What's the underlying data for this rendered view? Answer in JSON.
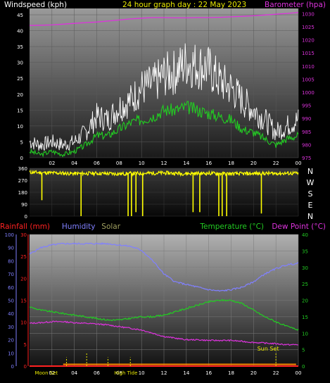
{
  "chart_data": [
    {
      "type": "line",
      "title": "24 hour graph day : 22 May 2023",
      "left_axis_label": "Windspeed (kph)",
      "right_axis_label": "Barometer (hpa)",
      "x_ticks": [
        "02",
        "04",
        "06",
        "08",
        "10",
        "12",
        "14",
        "16",
        "18",
        "20",
        "22",
        "00"
      ],
      "left_ticks": [
        "0",
        "5",
        "10",
        "15",
        "20",
        "25",
        "30",
        "35",
        "40",
        "45"
      ],
      "right_ticks": [
        "975",
        "980",
        "985",
        "990",
        "995",
        "1000",
        "1005",
        "1010",
        "1015",
        "1020",
        "1025",
        "1030"
      ],
      "ylim_left": [
        0,
        47
      ],
      "ylim_right": [
        975,
        1032
      ],
      "x": [
        0,
        1,
        2,
        3,
        4,
        5,
        6,
        7,
        8,
        9,
        10,
        11,
        12,
        13,
        14,
        15,
        16,
        17,
        18,
        19,
        20,
        21,
        22,
        23,
        24
      ],
      "series": [
        {
          "key": "gust",
          "color": "#ffffff",
          "values": [
            5,
            4,
            5,
            4,
            5,
            8,
            13,
            12,
            16,
            18,
            22,
            23,
            26,
            27,
            30,
            29,
            28,
            24,
            22,
            18,
            15,
            12,
            8,
            10,
            12
          ]
        },
        {
          "key": "wind",
          "color": "#22cc22",
          "values": [
            2,
            1,
            2,
            1,
            2,
            4,
            7,
            7,
            9,
            11,
            12,
            13,
            15,
            15,
            16,
            15,
            14,
            13,
            12,
            9,
            8,
            6,
            4,
            6,
            7
          ]
        },
        {
          "key": "barometer",
          "color": "#dd33dd",
          "values": [
            1025.5,
            1025.6,
            1025.7,
            1026.0,
            1026.3,
            1026.6,
            1026.8,
            1027.2,
            1027.6,
            1028.0,
            1028.3,
            1028.5,
            1028.5,
            1028.4,
            1028.4,
            1028.5,
            1028.5,
            1028.6,
            1028.8,
            1029.0,
            1029.2,
            1029.5,
            1029.8,
            1030.1,
            1030.5
          ]
        }
      ]
    },
    {
      "type": "line",
      "right_labels": [
        "N",
        "W",
        "S",
        "E",
        "N"
      ],
      "left_ticks": [
        "360",
        "270",
        "180",
        "90",
        "0"
      ],
      "ylim": [
        0,
        360
      ],
      "x": [
        0,
        2,
        4,
        6,
        8,
        10,
        12,
        14,
        16,
        18,
        20,
        22,
        24
      ],
      "direction_values": [
        330,
        325,
        320,
        322,
        318,
        322,
        325,
        320,
        322,
        318,
        320,
        322,
        322
      ],
      "dips": [
        {
          "hour": 1.1,
          "value": 120
        },
        {
          "hour": 4.6,
          "value": 0
        },
        {
          "hour": 8.8,
          "value": 0
        },
        {
          "hour": 9.1,
          "value": 0
        },
        {
          "hour": 9.5,
          "value": 30
        },
        {
          "hour": 10.1,
          "value": 0
        },
        {
          "hour": 14.6,
          "value": 30
        },
        {
          "hour": 15.2,
          "value": 30
        },
        {
          "hour": 16.9,
          "value": 0
        },
        {
          "hour": 17.2,
          "value": 0
        },
        {
          "hour": 17.6,
          "value": 0
        },
        {
          "hour": 20.7,
          "value": 20
        }
      ]
    },
    {
      "type": "line",
      "legend_left": [
        {
          "text": "Rainfall (mm)",
          "color": "#ff2222"
        },
        {
          "text": "Humidity",
          "color": "#8080ff"
        },
        {
          "text": "Solar",
          "color": "#a0a060"
        }
      ],
      "legend_right": [
        {
          "text": "Temperature (°C)",
          "color": "#22cc22"
        },
        {
          "text": "Dew Point (°C)",
          "color": "#dd33dd"
        }
      ],
      "humidity_ticks": [
        "0",
        "10",
        "20",
        "30",
        "40",
        "50",
        "60",
        "70",
        "80",
        "90",
        "100"
      ],
      "rain_ticks": [
        "0",
        "5",
        "10",
        "15",
        "20",
        "25",
        "30"
      ],
      "temp_ticks": [
        "0",
        "5",
        "10",
        "15",
        "20",
        "25",
        "30",
        "35",
        "40"
      ],
      "x_ticks": [
        "02",
        "04",
        "06",
        "08",
        "10",
        "12",
        "14",
        "16",
        "18",
        "20",
        "22",
        "00"
      ],
      "ylim_temp": [
        0,
        40
      ],
      "x": [
        0,
        1,
        2,
        3,
        4,
        5,
        6,
        7,
        8,
        9,
        10,
        11,
        12,
        13,
        14,
        15,
        16,
        17,
        18,
        19,
        20,
        21,
        22,
        23,
        24
      ],
      "series": [
        {
          "key": "humidity",
          "color": "#8080ff",
          "range": [
            0,
            100
          ],
          "values": [
            85,
            90,
            92,
            93,
            93,
            93,
            93,
            93,
            92,
            91,
            88,
            80,
            70,
            64,
            62,
            60,
            58,
            57,
            58,
            60,
            64,
            70,
            74,
            77,
            78
          ]
        },
        {
          "key": "temperature",
          "color": "#22cc22",
          "range": [
            0,
            40
          ],
          "values": [
            18,
            17,
            16.5,
            16,
            15.5,
            15,
            14.5,
            14,
            14,
            14.5,
            15,
            15,
            15.5,
            16.5,
            17.5,
            18.5,
            19.5,
            20,
            20,
            19,
            17,
            15,
            13.5,
            12,
            11
          ]
        },
        {
          "key": "dewpoint",
          "color": "#dd33dd",
          "range": [
            0,
            40
          ],
          "values": [
            13,
            13.2,
            13.5,
            13.5,
            13.2,
            13,
            12.8,
            12.5,
            12,
            11.5,
            11,
            10,
            9,
            8.5,
            8,
            8,
            7.8,
            7.8,
            7.8,
            7.5,
            7.2,
            7,
            6.8,
            6.5,
            6.5
          ]
        },
        {
          "key": "rainfall",
          "color": "#ff2222",
          "range": [
            0,
            30
          ],
          "values": [
            0,
            0,
            0,
            0,
            0,
            0,
            0,
            0,
            0,
            0,
            0,
            0,
            0,
            0,
            0,
            0,
            0,
            0,
            0,
            0,
            0,
            0,
            0,
            0,
            0
          ]
        }
      ],
      "solar_bars": [
        {
          "hour": 3.3,
          "value": 2
        },
        {
          "hour": 5.1,
          "value": 3
        },
        {
          "hour": 7.0,
          "value": 2
        },
        {
          "hour": 9.0,
          "value": 2
        },
        {
          "hour": 22.0,
          "value": 3
        }
      ],
      "annotations": [
        {
          "text": "Moon Set",
          "hour": 1.5,
          "pos": "bottom"
        },
        {
          "text": "High Tide",
          "hour": 8.6,
          "pos": "bottom"
        },
        {
          "text": "Sun Set",
          "hour": 21.3,
          "pos": "above-axis"
        }
      ]
    }
  ]
}
